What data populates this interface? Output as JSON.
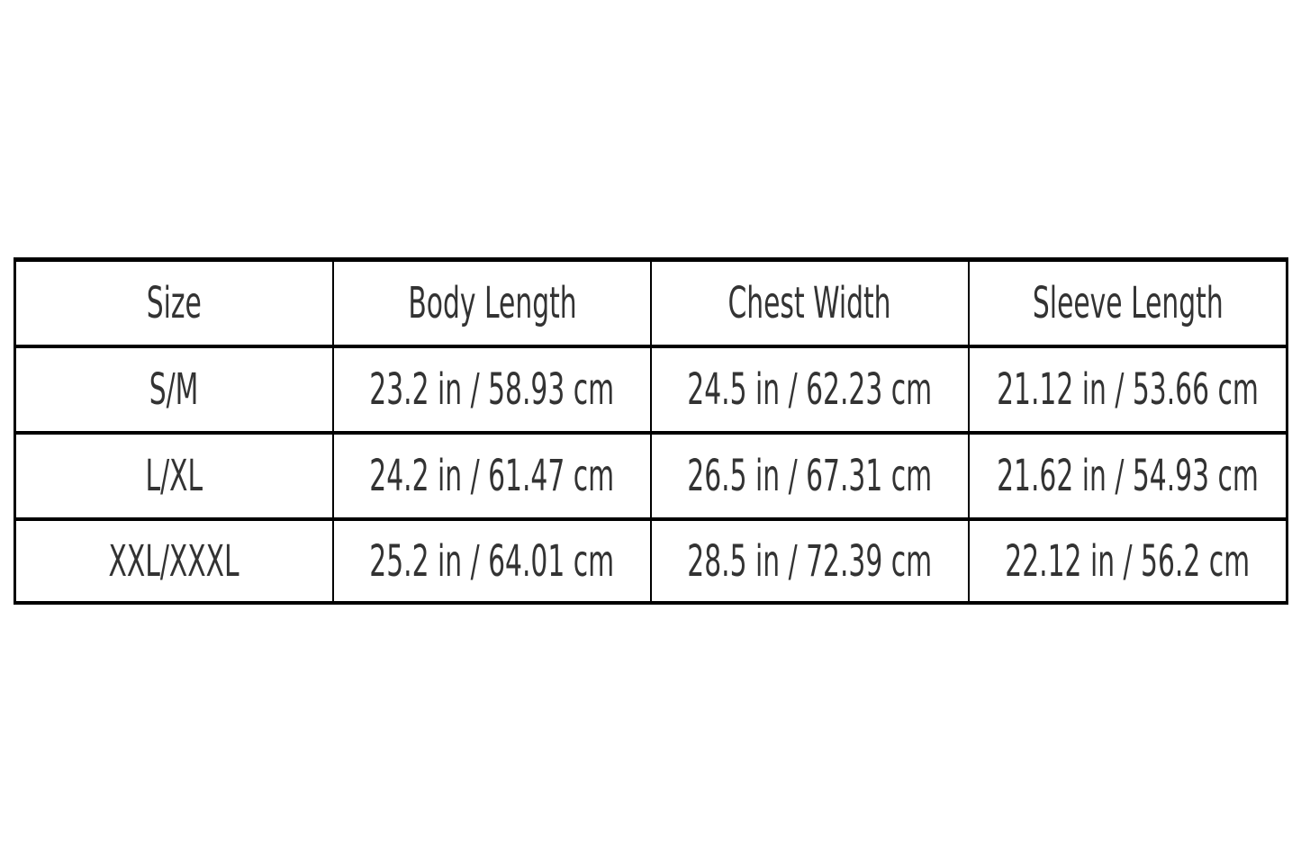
{
  "table": {
    "headers": [
      "Size",
      "Body Length",
      "Chest Width",
      "Sleeve Length"
    ],
    "rows": [
      [
        "S/M",
        "23.2 in / 58.93 cm",
        "24.5 in / 62.23 cm",
        "21.12 in / 53.66 cm"
      ],
      [
        "L/XL",
        "24.2 in / 61.47 cm",
        "26.5 in / 67.31 cm",
        "21.62 in / 54.93 cm"
      ],
      [
        "XXL/XXXL",
        "25.2 in / 64.01 cm",
        "28.5 in / 72.39 cm",
        "22.12 in / 56.2 cm"
      ]
    ]
  }
}
